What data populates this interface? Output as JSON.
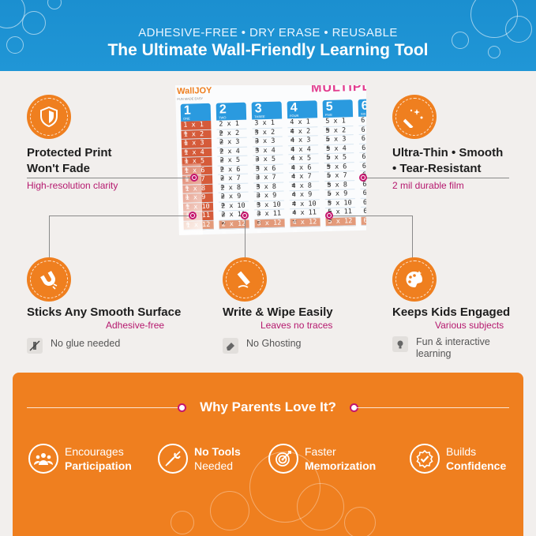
{
  "header": {
    "kicker": "ADHESIVE-FREE • DRY ERASE • REUSABLE",
    "title": "The Ultimate Wall-Friendly Learning Tool"
  },
  "colors": {
    "header_blue": "#1b8fd0",
    "accent_orange": "#ef7f1f",
    "accent_magenta": "#b5186e",
    "background": "#f2efed"
  },
  "features": {
    "protected": {
      "icon": "shield-icon",
      "title_1": "Protected Print",
      "title_2": "Won't Fade",
      "subtitle": "High-resolution clarity"
    },
    "ultrathin": {
      "icon": "magic-wand-icon",
      "title_1": "Ultra-Thin • Smooth",
      "title_2": "• Tear-Resistant",
      "subtitle": "2 mil durable film"
    },
    "sticks": {
      "icon": "magnet-icon",
      "title": "Sticks Any Smooth Surface",
      "subtitle": "Adhesive-free",
      "note_icon": "no-glue-icon",
      "note": "No glue needed"
    },
    "wipe": {
      "icon": "marker-icon",
      "title": "Write & Wipe Easily",
      "subtitle": "Leaves no traces",
      "note_icon": "eraser-icon",
      "note": "No Ghosting"
    },
    "engaged": {
      "icon": "palette-icon",
      "title": "Keeps Kids Engaged",
      "subtitle": "Various subjects",
      "note_icon": "lightbulb-icon",
      "note_1": "Fun & interactive",
      "note_2": "learning"
    }
  },
  "chart_preview": {
    "brand": "WallJOY",
    "brand_tag": "FUN MADE EASY",
    "title": "MULTIPL",
    "columns": [
      {
        "num": "1",
        "word": "ONE",
        "rows": [
          "1 x 1 =",
          "1 x 2 =",
          "1 x 3 =",
          "1 x 4 =",
          "1 x 5 =",
          "1 x 6 =",
          "1 x 7 =",
          "1 x 8 =",
          "1 x 9 =",
          "1 x 10 =",
          "1 x 11 =",
          "1 x 12 ="
        ]
      },
      {
        "num": "2",
        "word": "TWO",
        "rows": [
          "2 x 1 =",
          "2 x 2 =",
          "2 x 3 =",
          "2 x 4 =",
          "2 x 5 =",
          "2 x 6 =",
          "2 x 7 =",
          "2 x 8 =",
          "2 x 9 =",
          "2 x 10 =",
          "2 x 11 =",
          "2 x 12 ="
        ]
      },
      {
        "num": "3",
        "word": "THREE",
        "rows": [
          "3 x 1 =",
          "3 x 2 =",
          "3 x 3 =",
          "3 x 4 =",
          "3 x 5 =",
          "3 x 6 =",
          "3 x 7 =",
          "3 x 8 =",
          "3 x 9 =",
          "3 x 10 =",
          "3 x 11 =",
          "3 x 12 ="
        ]
      },
      {
        "num": "4",
        "word": "FOUR",
        "rows": [
          "4 x 1 =",
          "4 x 2 =",
          "4 x 3 =",
          "4 x 4 =",
          "4 x 5 =",
          "4 x 6 =",
          "4 x 7 =",
          "4 x 8 =",
          "4 x 9 =",
          "4 x 10 =",
          "4 x 11 =",
          "4 x 12 ="
        ]
      },
      {
        "num": "5",
        "word": "FIVE",
        "rows": [
          "5 x 1 =",
          "5 x 2 =",
          "5 x 3 =",
          "5 x 4 =",
          "5 x 5 =",
          "5 x 6 =",
          "5 x 7 =",
          "5 x 8 =",
          "5 x 9 =",
          "5 x 10 =",
          "5 x 11 =",
          "5 x 12 ="
        ]
      },
      {
        "num": "6",
        "word": "SIX",
        "rows": [
          "6 x",
          "6 x",
          "6 x",
          "6 x",
          "6 x",
          "6 x",
          "6 x",
          "6 x",
          "6 x",
          "6 x",
          "6 x",
          "6 x"
        ]
      }
    ]
  },
  "why": {
    "title": "Why Parents Love It?",
    "items": [
      {
        "icon": "people-icon",
        "line1": "Encourages",
        "line2": "Participation"
      },
      {
        "icon": "no-tools-icon",
        "line1": "No Tools",
        "line2": "Needed"
      },
      {
        "icon": "target-icon",
        "line1": "Faster",
        "line2": "Memorization"
      },
      {
        "icon": "badge-check-icon",
        "line1": "Builds",
        "line2": "Confidence"
      }
    ]
  }
}
